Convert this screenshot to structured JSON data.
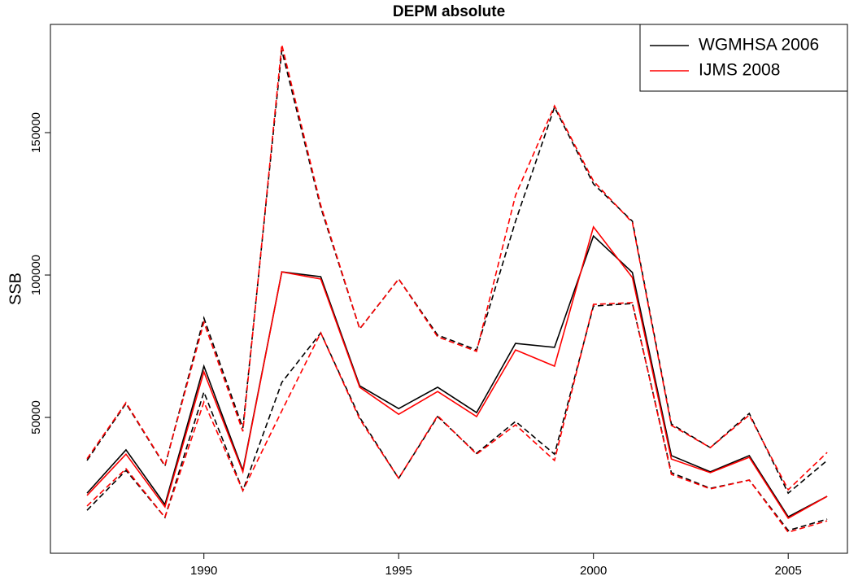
{
  "chart_data": {
    "type": "line",
    "title": "DEPM absolute",
    "y_label": "SSB",
    "x": [
      1987,
      1988,
      1989,
      1990,
      1991,
      1992,
      1993,
      1994,
      1995,
      1996,
      1997,
      1998,
      1999,
      2000,
      2001,
      2002,
      2003,
      2004,
      2005,
      2006
    ],
    "series": [
      {
        "name": "WGMHSA 2006",
        "color": "#000000",
        "dashed": false,
        "values": [
          23400,
          38600,
          19400,
          68000,
          31400,
          101100,
          99400,
          61100,
          53100,
          60600,
          51700,
          76000,
          74600,
          113700,
          100900,
          36600,
          30900,
          36600,
          15100,
          22300
        ]
      },
      {
        "name": "IJMS 2008",
        "color": "#ff0000",
        "dashed": false,
        "values": [
          22600,
          37100,
          18600,
          66000,
          30900,
          101100,
          98600,
          60600,
          51100,
          59100,
          50300,
          73700,
          68000,
          116900,
          99100,
          35400,
          30600,
          36000,
          14600,
          22300
        ]
      },
      {
        "color": "#000000",
        "dashed": true,
        "values": [
          34900,
          54900,
          32900,
          84900,
          46300,
          178900,
          123700,
          81100,
          98600,
          78900,
          73700,
          118900,
          158900,
          132000,
          118900,
          47700,
          39400,
          51400,
          23400,
          34900
        ]
      },
      {
        "color": "#ff0000",
        "dashed": true,
        "values": [
          35500,
          55200,
          33100,
          83400,
          45100,
          180900,
          124500,
          81100,
          98600,
          78300,
          73200,
          128000,
          159400,
          133000,
          118400,
          47200,
          39400,
          50800,
          24600,
          37700
        ]
      },
      {
        "color": "#000000",
        "dashed": true,
        "values": [
          17400,
          31400,
          14900,
          58900,
          24300,
          62300,
          79700,
          50000,
          28600,
          50300,
          37400,
          48600,
          37100,
          89100,
          90000,
          30600,
          25100,
          28000,
          10300,
          14300
        ]
      },
      {
        "color": "#ff0000",
        "dashed": true,
        "values": [
          18900,
          32000,
          14900,
          55400,
          24300,
          52300,
          79700,
          49400,
          28600,
          50600,
          37100,
          47400,
          34900,
          89700,
          90300,
          30000,
          24900,
          28000,
          9700,
          13700
        ]
      }
    ],
    "xlim": [
      1986.06,
      2006.52
    ],
    "xticks": [
      1990,
      1995,
      2000,
      2005
    ],
    "ylim": [
      2300,
      188000
    ],
    "yticks": [
      50000,
      100000,
      150000
    ],
    "legend": "top-right"
  }
}
